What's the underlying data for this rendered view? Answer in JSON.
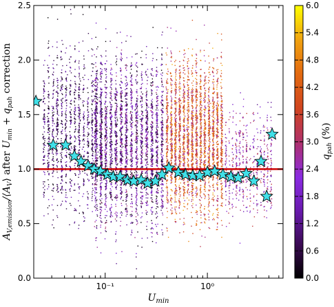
{
  "chart_data": {
    "type": "scatter",
    "title": "",
    "xlabel": "U_min",
    "ylabel": "A_V,emission/⟨A_V⟩ after U_min + q_pah correction",
    "x_scale": "log",
    "xlim": [
      0.02,
      5.5
    ],
    "ylim": [
      0.0,
      2.5
    ],
    "x_ticks": [
      {
        "value": 0.1,
        "label": "10⁻¹"
      },
      {
        "value": 1.0,
        "label": "10⁰"
      }
    ],
    "y_ticks": [
      {
        "value": 0.0,
        "label": "0.0"
      },
      {
        "value": 0.5,
        "label": "0.5"
      },
      {
        "value": 1.0,
        "label": "1.0"
      },
      {
        "value": 1.5,
        "label": "1.5"
      },
      {
        "value": 2.0,
        "label": "2.0"
      },
      {
        "value": 2.5,
        "label": "2.5"
      }
    ],
    "reference_line": {
      "y": 1.0,
      "color": "#cc0000"
    },
    "colorbar": {
      "label": "q_pah (%)",
      "min": 0.0,
      "max": 6.0,
      "ticks": [
        "0.0",
        "0.6",
        "1.2",
        "1.8",
        "2.4",
        "3.0",
        "3.6",
        "4.2",
        "4.8",
        "5.4",
        "6.0"
      ],
      "colormap": "gnuplot"
    },
    "series": [
      {
        "kind": "binned_median",
        "marker": "star",
        "color": "#40e0e8",
        "x": [
          0.021,
          0.031,
          0.041,
          0.05,
          0.058,
          0.068,
          0.078,
          0.09,
          0.105,
          0.12,
          0.14,
          0.165,
          0.19,
          0.225,
          0.26,
          0.31,
          0.36,
          0.42,
          0.52,
          0.61,
          0.72,
          0.84,
          1.0,
          1.18,
          1.42,
          1.7,
          2.0,
          2.4,
          2.85,
          3.35,
          3.8,
          4.3
        ],
        "y": [
          1.62,
          1.22,
          1.22,
          1.12,
          1.07,
          1.03,
          1.0,
          0.98,
          0.95,
          0.93,
          0.93,
          0.9,
          0.89,
          0.9,
          0.87,
          0.89,
          0.95,
          1.01,
          0.97,
          0.95,
          0.94,
          0.94,
          0.97,
          0.98,
          0.95,
          0.93,
          0.92,
          0.96,
          0.89,
          1.07,
          0.75,
          1.32
        ]
      }
    ],
    "scatter_regions": [
      {
        "x_range": [
          0.025,
          0.1
        ],
        "y_range": [
          0.2,
          2.5
        ],
        "q_pah_range": [
          0.0,
          1.8
        ],
        "density": "medium"
      },
      {
        "x_range": [
          0.08,
          0.4
        ],
        "y_range": [
          0.1,
          2.4
        ],
        "q_pah_range": [
          0.0,
          3.0
        ],
        "density": "high"
      },
      {
        "x_range": [
          0.4,
          1.5
        ],
        "y_range": [
          0.2,
          2.4
        ],
        "q_pah_range": [
          2.4,
          5.4
        ],
        "density": "high"
      },
      {
        "x_range": [
          1.5,
          4.5
        ],
        "y_range": [
          0.3,
          1.8
        ],
        "q_pah_range": [
          1.2,
          3.6
        ],
        "density": "low"
      }
    ]
  }
}
